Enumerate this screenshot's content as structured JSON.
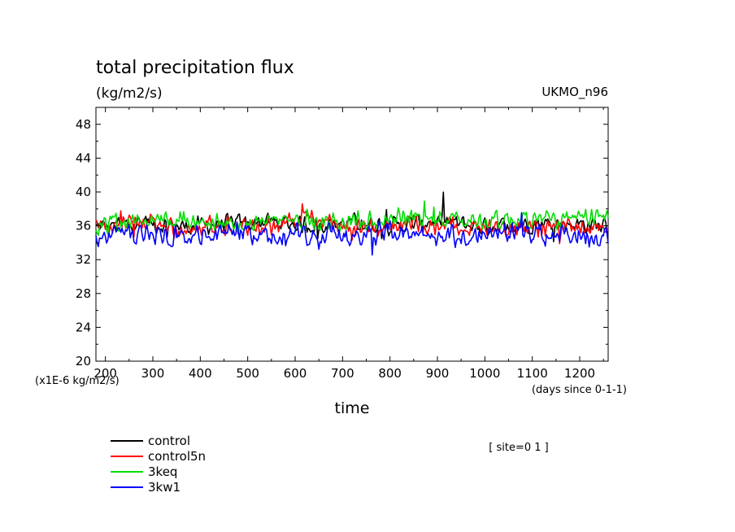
{
  "chart_data": {
    "type": "line",
    "title": "total precipitation flux",
    "units": "(kg/m2/s)",
    "model_label": "UKMO_n96",
    "xlabel": "time",
    "x_units": "(days since 0-1-1)",
    "y_scale_label": "(x1E-6 kg/m2/s)",
    "annotation": "[ site=0 1 ]",
    "xlim": [
      180,
      1260
    ],
    "ylim": [
      20,
      50
    ],
    "x_ticks": [
      200,
      300,
      400,
      500,
      600,
      700,
      800,
      900,
      1000,
      1100,
      1200
    ],
    "y_ticks": [
      20,
      24,
      28,
      32,
      36,
      40,
      44,
      48
    ],
    "colors": {
      "control": "#000000",
      "control5n": "#ff0000",
      "3keq": "#00dd00",
      "3kw1": "#0000ff"
    },
    "series": [
      {
        "name": "control",
        "color": "#000000",
        "x": [
          180,
          270,
          360,
          450,
          540,
          630,
          720,
          810,
          900,
          990,
          1080,
          1170,
          1260
        ],
        "values": [
          35.8,
          36.3,
          35.9,
          36.2,
          36.5,
          36.1,
          36.4,
          36.0,
          36.6,
          35.9,
          36.2,
          36.3,
          36.0
        ]
      },
      {
        "name": "control5n",
        "color": "#ff0000",
        "x": [
          180,
          270,
          360,
          450,
          540,
          630,
          720,
          810,
          900,
          990,
          1080,
          1170,
          1260
        ],
        "values": [
          36.0,
          36.4,
          35.7,
          36.1,
          35.8,
          36.9,
          35.6,
          36.2,
          35.9,
          35.8,
          36.0,
          35.7,
          36.1
        ]
      },
      {
        "name": "3keq",
        "color": "#00dd00",
        "x": [
          180,
          270,
          360,
          450,
          540,
          630,
          720,
          810,
          900,
          990,
          1080,
          1170,
          1260
        ],
        "values": [
          35.9,
          36.6,
          36.8,
          36.2,
          36.5,
          36.7,
          36.4,
          37.0,
          36.8,
          36.5,
          36.9,
          36.6,
          37.1
        ]
      },
      {
        "name": "3kw1",
        "color": "#0000ff",
        "x": [
          180,
          270,
          360,
          450,
          540,
          630,
          720,
          810,
          900,
          990,
          1080,
          1170,
          1260
        ],
        "values": [
          34.8,
          35.1,
          34.9,
          35.2,
          34.6,
          35.0,
          34.8,
          35.3,
          34.7,
          35.1,
          34.9,
          35.0,
          34.8
        ]
      }
    ]
  }
}
